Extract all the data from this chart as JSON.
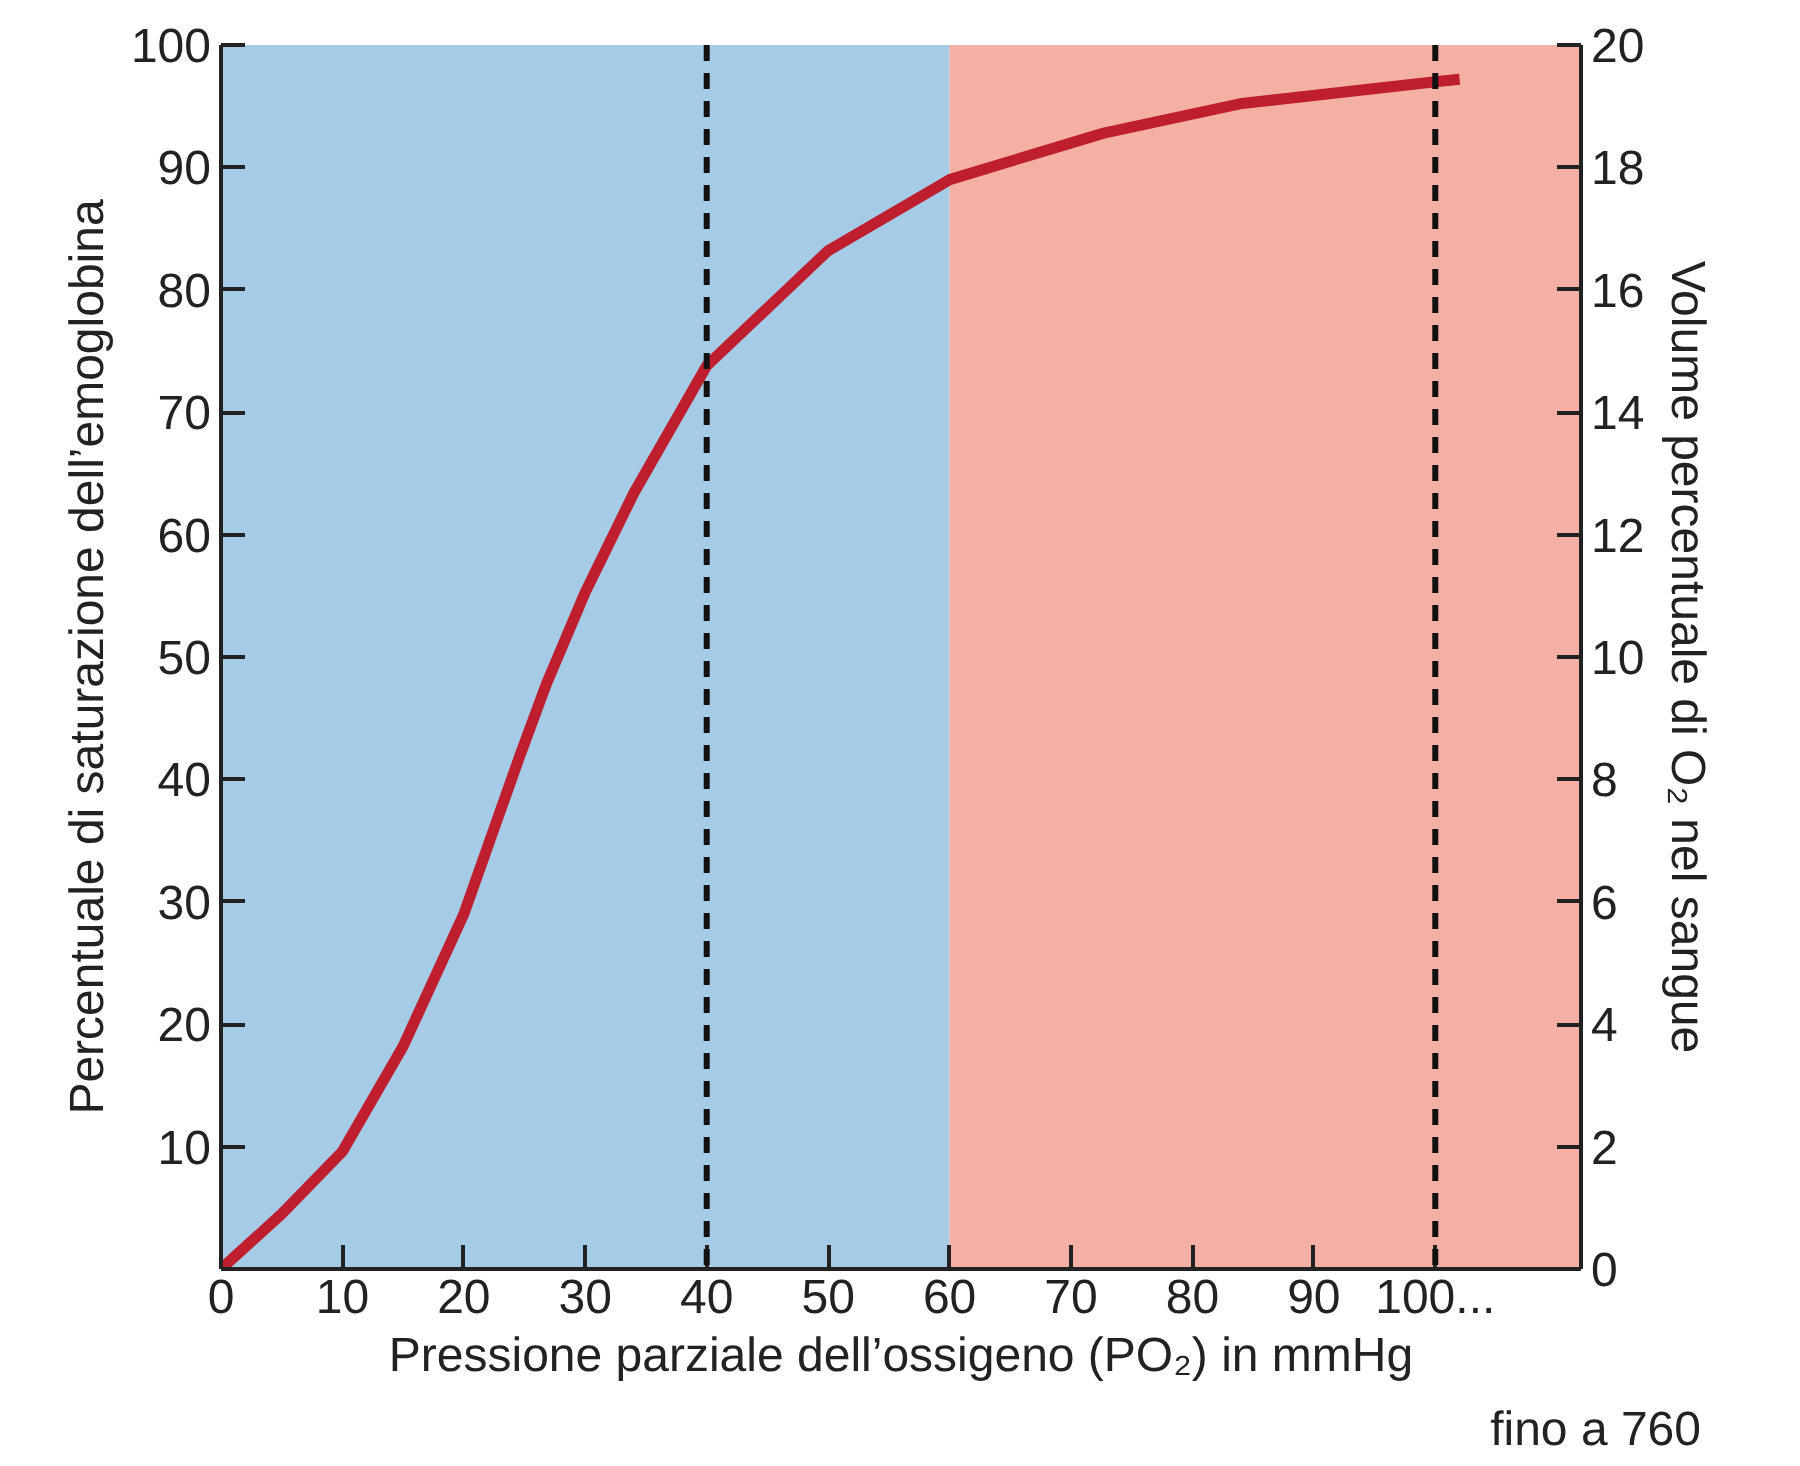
{
  "chart_data": {
    "type": "line",
    "xlabel": "Pressione parziale dell’ossigeno (PO₂) in mmHg",
    "ylabel": "Percentuale di saturazione dell’emoglobina",
    "y2label": "Volume percentuale di O₂ nel sangue",
    "series": [
      {
        "color": "#be1e2d",
        "x": [
          0,
          5,
          10,
          15,
          20,
          24.6,
          26.8,
          30,
          34,
          40,
          50,
          60,
          72.7,
          83.9,
          100,
          102
        ],
        "values": [
          0,
          4.5,
          9.6,
          18.2,
          29,
          41.9,
          47.8,
          55.3,
          63.4,
          73.8,
          83.2,
          89,
          92.8,
          95.2,
          97,
          97.2
        ]
      }
    ],
    "xlim": [
      0,
      112
    ],
    "xticks": [
      0,
      10,
      20,
      30,
      40,
      50,
      60,
      70,
      80,
      90,
      {
        "value": 100,
        "label": "100..."
      }
    ],
    "ylim": [
      0,
      100
    ],
    "yticks": [
      10,
      20,
      30,
      40,
      50,
      60,
      70,
      80,
      90,
      100
    ],
    "y2lim": [
      0,
      20
    ],
    "y2ticks": [
      0,
      2,
      4,
      6,
      8,
      10,
      12,
      14,
      16,
      18,
      20
    ],
    "bands": [
      {
        "axis": "x",
        "from": 0,
        "to": 60,
        "color": "#a5cbe6"
      },
      {
        "axis": "x",
        "from": 60,
        "to": 112,
        "color": "#f4b0a4"
      }
    ],
    "ref_lines": [
      {
        "axis": "x",
        "value": 40,
        "color": "#111111",
        "line_style": "dashed"
      },
      {
        "axis": "x",
        "value": 100,
        "color": "#111111",
        "line_style": "dashed"
      }
    ],
    "annotations": [
      "fino a 760"
    ],
    "grid": false,
    "marker": "none",
    "line_style": "solid"
  }
}
